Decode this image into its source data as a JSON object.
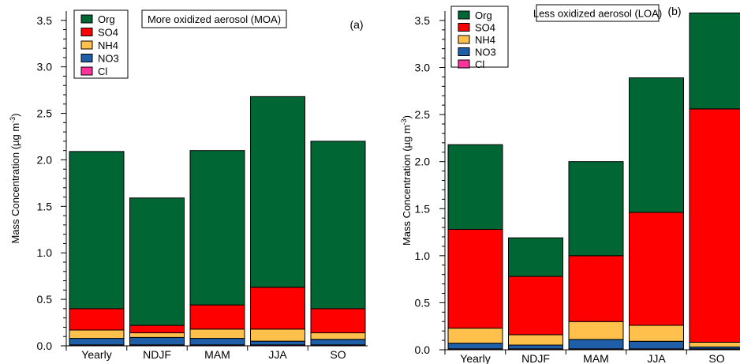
{
  "chart_data": [
    {
      "type": "bar",
      "stacked": true,
      "title": "More oxidized aerosol (MOA)",
      "panel_label": "(a)",
      "ylabel_main": "Mass Concentration (µg m",
      "ylabel_sup": "-3",
      "ylabel_close": ")",
      "ylim": [
        0,
        3.6
      ],
      "yticks": [
        0.0,
        0.5,
        1.0,
        1.5,
        2.0,
        2.5,
        3.0,
        3.5
      ],
      "categories": [
        "Yearly",
        "NDJF",
        "MAM",
        "JJA",
        "SO"
      ],
      "legend_position": "top-left",
      "series": [
        {
          "name": "Cl",
          "color": "#ff3399",
          "values": [
            0.01,
            0.01,
            0.01,
            0.01,
            0.01
          ]
        },
        {
          "name": "NO3",
          "color": "#1f5fa8",
          "values": [
            0.07,
            0.08,
            0.07,
            0.04,
            0.06
          ]
        },
        {
          "name": "NH4",
          "color": "#ffc04c",
          "values": [
            0.09,
            0.05,
            0.1,
            0.13,
            0.07
          ]
        },
        {
          "name": "SO4",
          "color": "#ff0000",
          "values": [
            0.23,
            0.08,
            0.26,
            0.45,
            0.26
          ]
        },
        {
          "name": "Org",
          "color": "#006633",
          "values": [
            1.69,
            1.37,
            1.66,
            2.05,
            1.8
          ]
        }
      ]
    },
    {
      "type": "bar",
      "stacked": true,
      "title": "Less oxidized aerosol (LOA)",
      "panel_label": "(b)",
      "ylabel_main": "Mass Concentration (µg m",
      "ylabel_sup": "-3",
      "ylabel_close": ")",
      "ylim": [
        0,
        3.6
      ],
      "yticks": [
        0.0,
        0.5,
        1.0,
        1.5,
        2.0,
        2.5,
        3.0,
        3.5
      ],
      "categories": [
        "Yearly",
        "NDJF",
        "MAM",
        "JJA",
        "SO"
      ],
      "legend_position": "top-left",
      "series": [
        {
          "name": "Cl",
          "color": "#ff3399",
          "values": [
            0.01,
            0.01,
            0.01,
            0.01,
            0.01
          ]
        },
        {
          "name": "NO3",
          "color": "#1f5fa8",
          "values": [
            0.06,
            0.04,
            0.1,
            0.08,
            0.02
          ]
        },
        {
          "name": "NH4",
          "color": "#ffc04c",
          "values": [
            0.16,
            0.11,
            0.19,
            0.17,
            0.05
          ]
        },
        {
          "name": "SO4",
          "color": "#ff0000",
          "values": [
            1.05,
            0.62,
            0.7,
            1.2,
            2.48
          ]
        },
        {
          "name": "Org",
          "color": "#006633",
          "values": [
            0.9,
            0.41,
            1.0,
            1.43,
            1.02
          ]
        }
      ]
    }
  ]
}
